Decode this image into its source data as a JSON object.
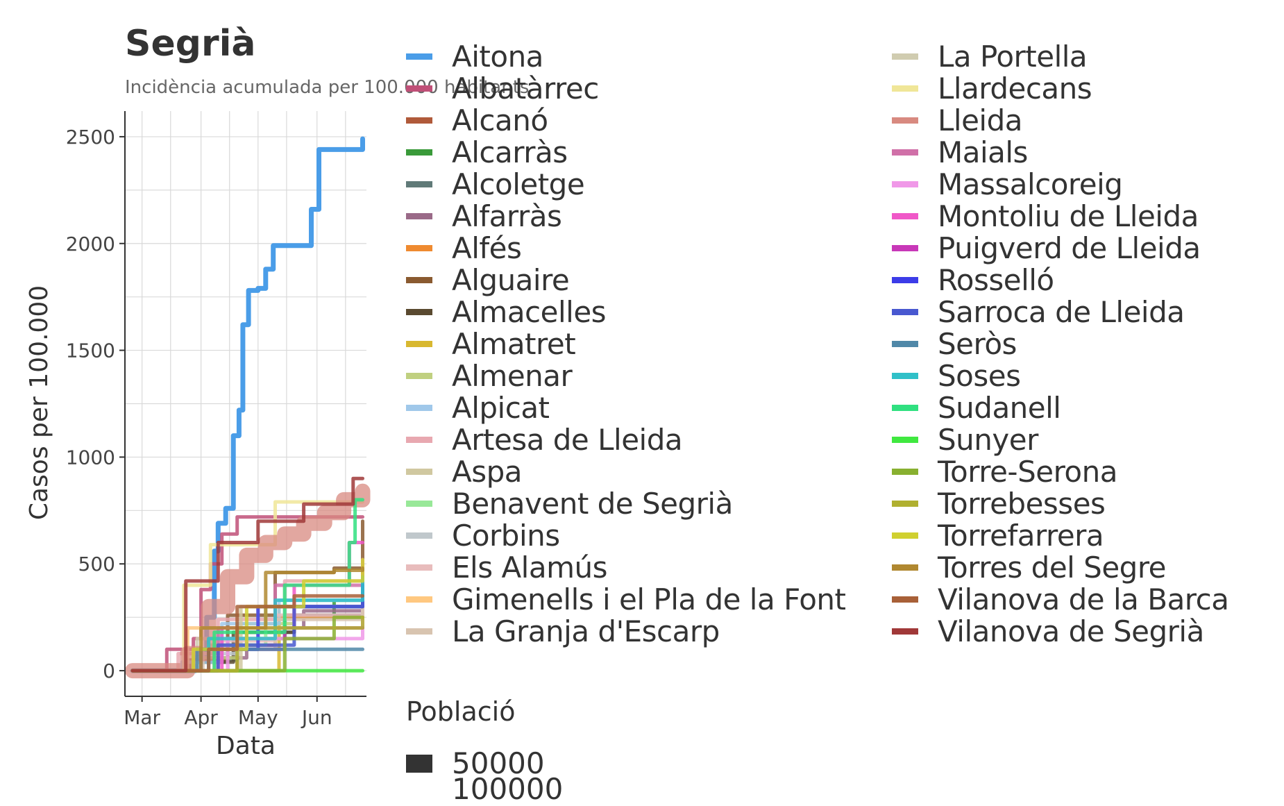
{
  "chart_data": {
    "type": "line",
    "title": "Segrià",
    "subtitle": "Incidència acumulada per 100.000 habitants",
    "xlabel": "Data",
    "ylabel": "Casos per 100.000",
    "x_ticks": [
      "Mar",
      "Apr",
      "May",
      "Jun"
    ],
    "y_ticks": [
      "0",
      "500",
      "1000",
      "1500",
      "2000",
      "2500"
    ],
    "xlim": [
      "2020-02-21",
      "2020-06-27"
    ],
    "ylim": [
      -120,
      2620
    ],
    "grid": true,
    "legend_title": "",
    "series": [
      {
        "name": "Aitona",
        "color": "#4a9de8",
        "points": [
          [
            "2020-02-25",
            0
          ],
          [
            "2020-03-20",
            0
          ],
          [
            "2020-03-29",
            80
          ],
          [
            "2020-04-04",
            250
          ],
          [
            "2020-04-08",
            560
          ],
          [
            "2020-04-10",
            690
          ],
          [
            "2020-04-14",
            760
          ],
          [
            "2020-04-18",
            1100
          ],
          [
            "2020-04-21",
            1220
          ],
          [
            "2020-04-23",
            1620
          ],
          [
            "2020-04-26",
            1780
          ],
          [
            "2020-05-01",
            1790
          ],
          [
            "2020-05-05",
            1880
          ],
          [
            "2020-05-09",
            1990
          ],
          [
            "2020-05-25",
            1990
          ],
          [
            "2020-05-29",
            2160
          ],
          [
            "2020-06-02",
            2440
          ],
          [
            "2020-06-22",
            2440
          ],
          [
            "2020-06-25",
            2490
          ]
        ]
      },
      {
        "name": "Albatàrrec",
        "color": "#c05078",
        "points": [
          [
            "2020-02-25",
            0
          ],
          [
            "2020-03-14",
            100
          ],
          [
            "2020-03-28",
            150
          ],
          [
            "2020-04-01",
            380
          ],
          [
            "2020-04-06",
            500
          ],
          [
            "2020-04-12",
            640
          ],
          [
            "2020-04-20",
            720
          ],
          [
            "2020-05-30",
            720
          ],
          [
            "2020-06-08",
            720
          ],
          [
            "2020-06-25",
            720
          ]
        ]
      },
      {
        "name": "Alcanó",
        "color": "#b05a3a",
        "points": [
          [
            "2020-02-25",
            0
          ],
          [
            "2020-04-05",
            0
          ],
          [
            "2020-04-20",
            200
          ],
          [
            "2020-05-15",
            260
          ],
          [
            "2020-06-25",
            320
          ]
        ]
      },
      {
        "name": "Alcarràs",
        "color": "#3a9a3a",
        "points": [
          [
            "2020-02-25",
            0
          ],
          [
            "2020-03-25",
            40
          ],
          [
            "2020-04-15",
            150
          ],
          [
            "2020-05-15",
            250
          ],
          [
            "2020-06-10",
            330
          ],
          [
            "2020-06-25",
            480
          ]
        ]
      },
      {
        "name": "Alcoletge",
        "color": "#607a78",
        "points": [
          [
            "2020-02-25",
            0
          ],
          [
            "2020-03-28",
            50
          ],
          [
            "2020-04-20",
            180
          ],
          [
            "2020-05-20",
            260
          ],
          [
            "2020-06-25",
            330
          ]
        ]
      },
      {
        "name": "Alfarràs",
        "color": "#9a6a88",
        "points": [
          [
            "2020-02-25",
            0
          ],
          [
            "2020-04-01",
            60
          ],
          [
            "2020-04-25",
            200
          ],
          [
            "2020-05-25",
            280
          ],
          [
            "2020-06-25",
            340
          ]
        ]
      },
      {
        "name": "Alfés",
        "color": "#ef8a30",
        "points": [
          [
            "2020-02-25",
            0
          ],
          [
            "2020-04-08",
            120
          ],
          [
            "2020-05-10",
            250
          ],
          [
            "2020-06-25",
            310
          ]
        ]
      },
      {
        "name": "Alguaire",
        "color": "#8a5a30",
        "points": [
          [
            "2020-02-25",
            0
          ],
          [
            "2020-03-25",
            50
          ],
          [
            "2020-04-15",
            260
          ],
          [
            "2020-05-10",
            460
          ],
          [
            "2020-06-10",
            480
          ],
          [
            "2020-06-25",
            700
          ]
        ]
      },
      {
        "name": "Almacelles",
        "color": "#5a4a30",
        "points": [
          [
            "2020-02-25",
            0
          ],
          [
            "2020-03-26",
            40
          ],
          [
            "2020-04-18",
            180
          ],
          [
            "2020-05-20",
            300
          ],
          [
            "2020-06-25",
            380
          ]
        ]
      },
      {
        "name": "Almatret",
        "color": "#d8b830",
        "points": [
          [
            "2020-02-25",
            0
          ],
          [
            "2020-05-10",
            0
          ],
          [
            "2020-05-12",
            300
          ],
          [
            "2020-06-25",
            500
          ]
        ]
      },
      {
        "name": "Almenar",
        "color": "#c0d080",
        "points": [
          [
            "2020-02-25",
            0
          ],
          [
            "2020-03-30",
            60
          ],
          [
            "2020-04-20",
            220
          ],
          [
            "2020-05-20",
            330
          ],
          [
            "2020-06-25",
            420
          ]
        ]
      },
      {
        "name": "Alpicat",
        "color": "#a0c8ea",
        "points": [
          [
            "2020-02-25",
            0
          ],
          [
            "2020-03-22",
            40
          ],
          [
            "2020-04-12",
            220
          ],
          [
            "2020-05-12",
            330
          ],
          [
            "2020-06-25",
            420
          ]
        ]
      },
      {
        "name": "Artesa de Lleida",
        "color": "#e8a8b0",
        "points": [
          [
            "2020-02-25",
            0
          ],
          [
            "2020-03-20",
            80
          ],
          [
            "2020-04-10",
            240
          ],
          [
            "2020-05-15",
            420
          ],
          [
            "2020-06-25",
            520
          ]
        ]
      },
      {
        "name": "Aspa",
        "color": "#d0c8a0",
        "points": [
          [
            "2020-02-25",
            0
          ],
          [
            "2020-04-20",
            0
          ],
          [
            "2020-04-22",
            300
          ],
          [
            "2020-06-25",
            300
          ]
        ]
      },
      {
        "name": "Benavent de Segrià",
        "color": "#98e898",
        "points": [
          [
            "2020-02-25",
            0
          ],
          [
            "2020-04-05",
            120
          ],
          [
            "2020-05-05",
            300
          ],
          [
            "2020-06-25",
            380
          ]
        ]
      },
      {
        "name": "Corbins",
        "color": "#c0c8cc",
        "points": [
          [
            "2020-02-25",
            0
          ],
          [
            "2020-03-28",
            80
          ],
          [
            "2020-04-20",
            200
          ],
          [
            "2020-06-25",
            300
          ]
        ]
      },
      {
        "name": "Els Alamús",
        "color": "#e8bcbc",
        "points": [
          [
            "2020-02-25",
            0
          ],
          [
            "2020-04-08",
            140
          ],
          [
            "2020-05-10",
            260
          ],
          [
            "2020-06-25",
            360
          ]
        ]
      },
      {
        "name": "Gimenells i el Pla de la Font",
        "color": "#ffc880",
        "points": [
          [
            "2020-02-25",
            0
          ],
          [
            "2020-03-25",
            200
          ],
          [
            "2020-06-25",
            200
          ]
        ]
      },
      {
        "name": "La Granja d'Escarp",
        "color": "#d8c4b0",
        "points": [
          [
            "2020-02-25",
            0
          ],
          [
            "2020-04-02",
            100
          ],
          [
            "2020-05-10",
            240
          ],
          [
            "2020-06-25",
            300
          ]
        ]
      },
      {
        "name": "La Portella",
        "color": "#d0ccb0",
        "points": [
          [
            "2020-02-25",
            0
          ],
          [
            "2020-03-30",
            150
          ],
          [
            "2020-05-01",
            300
          ],
          [
            "2020-06-25",
            350
          ]
        ]
      },
      {
        "name": "Llardecans",
        "color": "#f0e698",
        "points": [
          [
            "2020-02-25",
            0
          ],
          [
            "2020-03-15",
            0
          ],
          [
            "2020-03-23",
            400
          ],
          [
            "2020-04-06",
            590
          ],
          [
            "2020-05-10",
            790
          ],
          [
            "2020-06-25",
            790
          ]
        ]
      },
      {
        "name": "Lleida",
        "color": "#d88a80",
        "points": [
          [
            "2020-02-25",
            0
          ],
          [
            "2020-03-10",
            0
          ],
          [
            "2020-03-25",
            80
          ],
          [
            "2020-04-05",
            300
          ],
          [
            "2020-04-15",
            440
          ],
          [
            "2020-04-25",
            540
          ],
          [
            "2020-05-05",
            600
          ],
          [
            "2020-05-15",
            640
          ],
          [
            "2020-05-25",
            690
          ],
          [
            "2020-06-05",
            740
          ],
          [
            "2020-06-15",
            800
          ],
          [
            "2020-06-25",
            840
          ]
        ]
      },
      {
        "name": "Maials",
        "color": "#d070a8",
        "points": [
          [
            "2020-02-25",
            0
          ],
          [
            "2020-04-10",
            200
          ],
          [
            "2020-05-10",
            400
          ],
          [
            "2020-06-25",
            520
          ]
        ]
      },
      {
        "name": "Massalcoreig",
        "color": "#f098e8",
        "points": [
          [
            "2020-02-25",
            0
          ],
          [
            "2020-04-15",
            150
          ],
          [
            "2020-06-25",
            250
          ]
        ]
      },
      {
        "name": "Montoliu de Lleida",
        "color": "#f058c8",
        "points": [
          [
            "2020-02-25",
            0
          ],
          [
            "2020-04-12",
            200
          ],
          [
            "2020-05-20",
            400
          ],
          [
            "2020-06-18",
            600
          ],
          [
            "2020-06-25",
            600
          ]
        ]
      },
      {
        "name": "Puigverd de Lleida",
        "color": "#c838b8",
        "points": [
          [
            "2020-02-25",
            0
          ],
          [
            "2020-04-05",
            100
          ],
          [
            "2020-05-15",
            200
          ],
          [
            "2020-06-25",
            200
          ]
        ]
      },
      {
        "name": "Rosselló",
        "color": "#3c3ce8",
        "points": [
          [
            "2020-02-25",
            0
          ],
          [
            "2020-04-01",
            100
          ],
          [
            "2020-05-01",
            300
          ],
          [
            "2020-06-25",
            400
          ]
        ]
      },
      {
        "name": "Sarroca de Lleida",
        "color": "#4858d0",
        "points": [
          [
            "2020-02-25",
            0
          ],
          [
            "2020-04-10",
            120
          ],
          [
            "2020-05-20",
            300
          ],
          [
            "2020-06-25",
            380
          ]
        ]
      },
      {
        "name": "Seròs",
        "color": "#5088a8",
        "points": [
          [
            "2020-02-25",
            0
          ],
          [
            "2020-03-30",
            100
          ],
          [
            "2020-06-25",
            100
          ]
        ]
      },
      {
        "name": "Soses",
        "color": "#30c0c8",
        "points": [
          [
            "2020-02-25",
            0
          ],
          [
            "2020-04-05",
            150
          ],
          [
            "2020-05-10",
            330
          ],
          [
            "2020-06-25",
            440
          ]
        ]
      },
      {
        "name": "Sudanell",
        "color": "#30e080",
        "points": [
          [
            "2020-02-25",
            0
          ],
          [
            "2020-04-08",
            180
          ],
          [
            "2020-05-15",
            400
          ],
          [
            "2020-06-18",
            600
          ],
          [
            "2020-06-21",
            800
          ],
          [
            "2020-06-25",
            800
          ]
        ]
      },
      {
        "name": "Sunyer",
        "color": "#40e840",
        "points": [
          [
            "2020-02-25",
            0
          ],
          [
            "2020-06-25",
            0
          ]
        ]
      },
      {
        "name": "Torre-Serona",
        "color": "#88b030",
        "points": [
          [
            "2020-02-25",
            0
          ],
          [
            "2020-04-15",
            0
          ],
          [
            "2020-05-15",
            150
          ],
          [
            "2020-06-10",
            250
          ],
          [
            "2020-06-25",
            250
          ]
        ]
      },
      {
        "name": "Torrebesses",
        "color": "#b0b030",
        "points": [
          [
            "2020-02-25",
            0
          ],
          [
            "2020-04-20",
            200
          ],
          [
            "2020-06-25",
            250
          ]
        ]
      },
      {
        "name": "Torrefarrera",
        "color": "#d0d030",
        "points": [
          [
            "2020-02-25",
            0
          ],
          [
            "2020-03-28",
            100
          ],
          [
            "2020-04-25",
            300
          ],
          [
            "2020-05-25",
            420
          ],
          [
            "2020-06-25",
            520
          ]
        ]
      },
      {
        "name": "Torres del Segre",
        "color": "#b08830",
        "points": [
          [
            "2020-02-25",
            0
          ],
          [
            "2020-04-01",
            200
          ],
          [
            "2020-05-05",
            460
          ],
          [
            "2020-06-10",
            470
          ],
          [
            "2020-06-25",
            480
          ]
        ]
      },
      {
        "name": "Vilanova de la Barca",
        "color": "#a86038",
        "points": [
          [
            "2020-02-25",
            0
          ],
          [
            "2020-03-20",
            0
          ],
          [
            "2020-04-05",
            100
          ],
          [
            "2020-04-20",
            300
          ],
          [
            "2020-05-20",
            350
          ],
          [
            "2020-06-25",
            350
          ]
        ]
      },
      {
        "name": "Vilanova de Segrià",
        "color": "#a03838",
        "points": [
          [
            "2020-02-25",
            0
          ],
          [
            "2020-03-18",
            0
          ],
          [
            "2020-03-24",
            420
          ],
          [
            "2020-04-05",
            420
          ],
          [
            "2020-04-10",
            600
          ],
          [
            "2020-05-01",
            700
          ],
          [
            "2020-05-25",
            780
          ],
          [
            "2020-06-20",
            900
          ],
          [
            "2020-06-25",
            900
          ]
        ]
      }
    ],
    "size_legend": {
      "title": "Població",
      "entries": [
        "50000",
        "100000"
      ]
    }
  }
}
